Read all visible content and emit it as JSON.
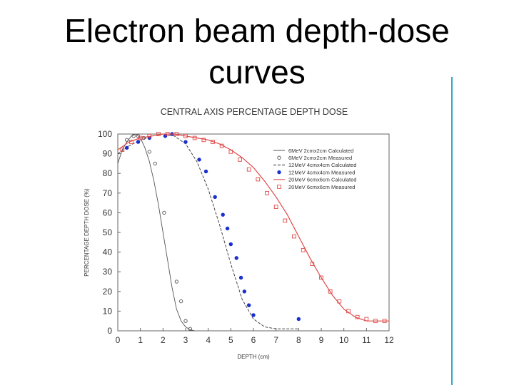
{
  "slide": {
    "title_line1": "Electron beam depth-dose",
    "title_line2": "curves",
    "accent_color": "#35a7c6"
  },
  "chart_data": {
    "type": "line",
    "title": "CENTRAL AXIS PERCENTAGE DEPTH DOSE",
    "xlabel": "DEPTH (cm)",
    "ylabel": "PERCENTAGE DEPTH DOSE (%)",
    "xlim": [
      0,
      12
    ],
    "ylim": [
      0,
      100
    ],
    "xticks": [
      0,
      1,
      2,
      3,
      4,
      5,
      6,
      7,
      8,
      9,
      10,
      11,
      12
    ],
    "yticks": [
      0,
      10,
      20,
      30,
      40,
      50,
      60,
      70,
      80,
      90,
      100
    ],
    "grid": false,
    "legend_position": "top-right",
    "series": [
      {
        "name": "6MeV 2cmx2cm Calculated",
        "kind": "line",
        "color": "#555555",
        "x": [
          0,
          0.2,
          0.4,
          0.6,
          0.8,
          1.0,
          1.2,
          1.4,
          1.6,
          1.8,
          2.0,
          2.2,
          2.4,
          2.6,
          2.8,
          3.0,
          3.2,
          3.4
        ],
        "y": [
          85,
          92,
          96,
          99,
          100,
          98,
          93,
          86,
          76,
          64,
          50,
          36,
          22,
          11,
          5,
          2,
          0.5,
          0
        ]
      },
      {
        "name": "6MeV 2cmx2cm Measured",
        "kind": "marker",
        "marker": "open-circle",
        "color": "#555555",
        "x": [
          0.4,
          0.7,
          0.9,
          1.15,
          1.4,
          1.65,
          2.05,
          2.6,
          2.8,
          3.0,
          3.2
        ],
        "y": [
          97,
          99,
          99,
          98,
          91,
          85,
          60,
          25,
          15,
          5,
          1
        ]
      },
      {
        "name": "12MeV 4cmx4cm Calculated",
        "kind": "line",
        "color": "#333333",
        "x": [
          0,
          0.5,
          1.0,
          1.5,
          2.0,
          2.5,
          3.0,
          3.5,
          4.0,
          4.5,
          5.0,
          5.5,
          6.0,
          6.5,
          7.0,
          8.0
        ],
        "y": [
          90,
          94,
          97,
          99,
          100,
          99,
          95,
          86,
          72,
          54,
          34,
          16,
          6,
          2,
          1,
          1
        ]
      },
      {
        "name": "12MeV 4cmx4cm Measured",
        "kind": "marker",
        "marker": "filled-circle",
        "color": "#1a2fd0",
        "x": [
          0.4,
          0.9,
          1.4,
          2.1,
          2.4,
          3.0,
          3.6,
          3.9,
          4.3,
          4.65,
          4.85,
          5.0,
          5.25,
          5.45,
          5.6,
          5.8,
          6.0,
          8.0
        ],
        "y": [
          93,
          96,
          98,
          99,
          100,
          96,
          87,
          81,
          68,
          59,
          52,
          44,
          37,
          27,
          20,
          13,
          8,
          6
        ]
      },
      {
        "name": "20MeV 6cmx6cm Calculated",
        "kind": "line",
        "color": "#e04848",
        "x": [
          0,
          0.5,
          1.0,
          1.5,
          2.0,
          2.5,
          3.0,
          3.5,
          4.0,
          4.5,
          5.0,
          5.5,
          6.0,
          6.5,
          7.0,
          7.5,
          8.0,
          8.5,
          9.0,
          9.5,
          10.0,
          10.5,
          11.0,
          11.5,
          12.0
        ],
        "y": [
          92,
          96,
          98,
          99,
          100,
          100,
          99,
          98,
          97,
          95,
          92,
          88,
          83,
          76,
          68,
          59,
          48,
          37,
          27,
          18,
          11,
          7,
          5,
          5,
          5
        ]
      },
      {
        "name": "20MeV 6cmx6cm Measured",
        "kind": "marker",
        "marker": "open-square",
        "color": "#e04848",
        "x": [
          0.2,
          0.6,
          1.0,
          1.4,
          1.8,
          2.2,
          2.6,
          3.0,
          3.4,
          3.8,
          4.2,
          4.6,
          5.0,
          5.4,
          5.8,
          6.2,
          6.6,
          7.0,
          7.4,
          7.8,
          8.2,
          8.6,
          9.0,
          9.4,
          9.8,
          10.2,
          10.6,
          11.0,
          11.4,
          11.8
        ],
        "y": [
          92,
          96,
          98,
          99,
          100,
          100,
          100,
          99,
          98,
          97,
          96,
          94,
          91,
          87,
          82,
          77,
          70,
          63,
          56,
          48,
          41,
          34,
          27,
          20,
          15,
          10,
          7,
          6,
          5,
          5
        ]
      }
    ]
  }
}
